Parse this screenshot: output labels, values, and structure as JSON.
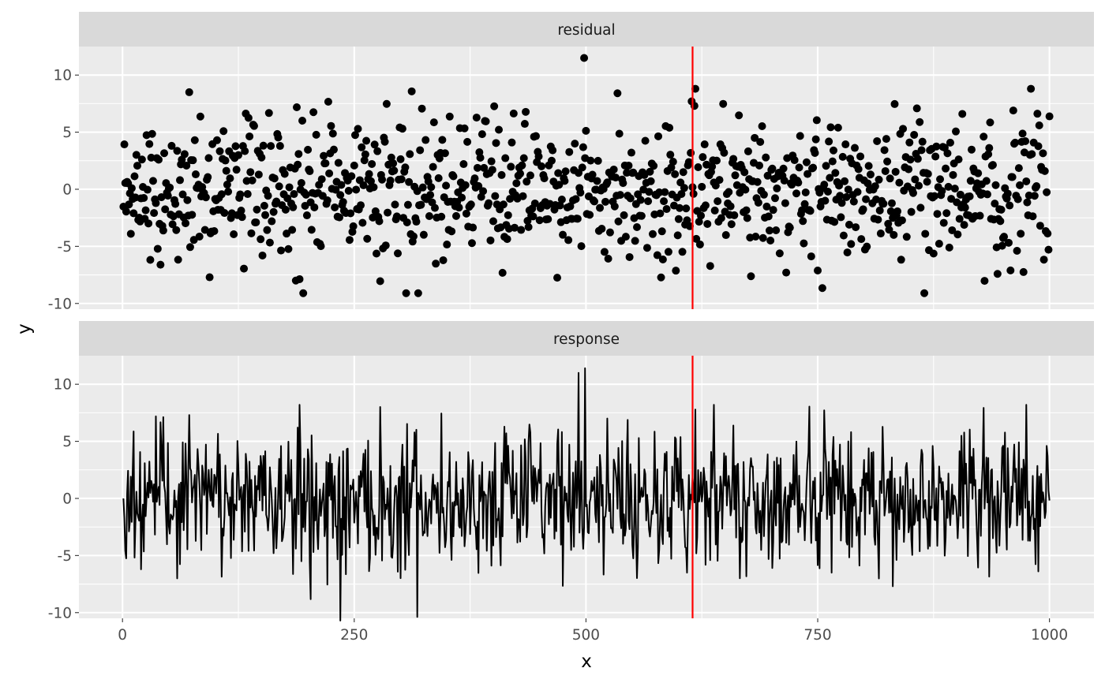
{
  "axes": {
    "x_title": "x",
    "y_title": "y"
  },
  "panels": [
    {
      "strip_label": "residual"
    },
    {
      "strip_label": "response"
    }
  ],
  "chart_data": {
    "type": "scatter",
    "facets": [
      "residual",
      "response"
    ],
    "x_range": [
      1,
      1000
    ],
    "xlim": [
      -47,
      1048
    ],
    "xticks": [
      0,
      250,
      500,
      750,
      1000
    ],
    "xtick_labels": [
      "0",
      "250",
      "500",
      "750",
      "1000"
    ],
    "ylim": [
      -10.5,
      12.5
    ],
    "yticks": [
      -10,
      -5,
      0,
      5,
      10
    ],
    "ytick_labels": [
      "-10",
      "-5",
      "0",
      "5",
      "10"
    ],
    "reference_line": {
      "x": 615,
      "color": "#ff0000"
    },
    "grid": true,
    "series": [
      {
        "facet": "residual",
        "geom": "point",
        "color": "#000000",
        "n": 1000,
        "y_range": [
          -9.1,
          11.5
        ]
      },
      {
        "facet": "response",
        "geom": "line",
        "color": "#000000",
        "n": 1000,
        "y_range": [
          -10.7,
          11.4
        ]
      }
    ]
  }
}
